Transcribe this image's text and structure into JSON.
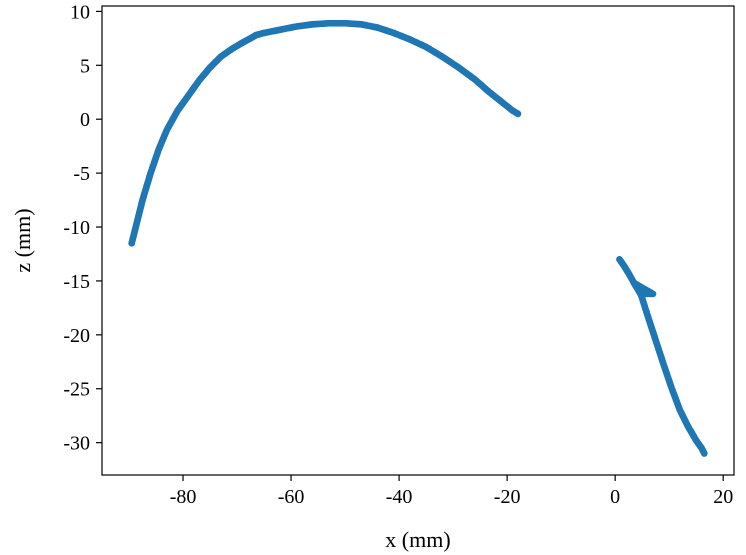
{
  "chart_data": {
    "type": "scatter",
    "title": "",
    "xlabel": "x (mm)",
    "ylabel": "z (mm)",
    "xlim": [
      -95,
      22
    ],
    "ylim": [
      -33,
      10.5
    ],
    "xticks": [
      -80,
      -60,
      -40,
      -20,
      0,
      20
    ],
    "yticks": [
      10,
      5,
      0,
      -5,
      -10,
      -15,
      -20,
      -25,
      -30
    ],
    "grid": false,
    "legend": "none",
    "marker_color": "#1f77b4",
    "series": [
      {
        "points": [
          [
            -89.5,
            -11.5
          ],
          [
            -88.5,
            -9.5
          ],
          [
            -87.5,
            -7.5
          ],
          [
            -86.0,
            -5.0
          ],
          [
            -84.5,
            -2.8
          ],
          [
            -83.0,
            -1.0
          ],
          [
            -81.0,
            0.8
          ],
          [
            -79.0,
            2.2
          ],
          [
            -77.0,
            3.6
          ],
          [
            -75.0,
            4.8
          ],
          [
            -73.0,
            5.8
          ],
          [
            -71.0,
            6.5
          ],
          [
            -69.0,
            7.1
          ],
          [
            -67.5,
            7.5
          ],
          [
            -66.5,
            7.8
          ],
          [
            -65.0,
            8.0
          ],
          [
            -62.0,
            8.3
          ],
          [
            -59.0,
            8.6
          ],
          [
            -56.0,
            8.8
          ],
          [
            -53.0,
            8.9
          ],
          [
            -50.0,
            8.9
          ],
          [
            -47.0,
            8.8
          ],
          [
            -44.0,
            8.5
          ],
          [
            -41.0,
            8.0
          ],
          [
            -38.0,
            7.4
          ],
          [
            -35.0,
            6.7
          ],
          [
            -32.0,
            5.8
          ],
          [
            -29.0,
            4.8
          ],
          [
            -26.0,
            3.7
          ],
          [
            -23.5,
            2.6
          ],
          [
            -21.0,
            1.6
          ],
          [
            -19.0,
            0.8
          ],
          [
            -18.0,
            0.5
          ]
        ]
      },
      {
        "points": [
          [
            0.8,
            -13.0
          ],
          [
            1.5,
            -13.5
          ],
          [
            2.5,
            -14.3
          ],
          [
            3.5,
            -15.2
          ],
          [
            5.0,
            -16.2
          ],
          [
            6.0,
            -16.2
          ],
          [
            7.0,
            -16.2
          ],
          [
            3.5,
            -15.2
          ],
          [
            4.8,
            -16.3
          ],
          [
            6.0,
            -18.2
          ],
          [
            7.5,
            -20.5
          ],
          [
            9.0,
            -22.8
          ],
          [
            10.5,
            -25.0
          ],
          [
            12.0,
            -27.0
          ],
          [
            13.5,
            -28.5
          ],
          [
            15.0,
            -29.8
          ],
          [
            16.0,
            -30.5
          ],
          [
            16.5,
            -31.0
          ]
        ]
      }
    ]
  }
}
